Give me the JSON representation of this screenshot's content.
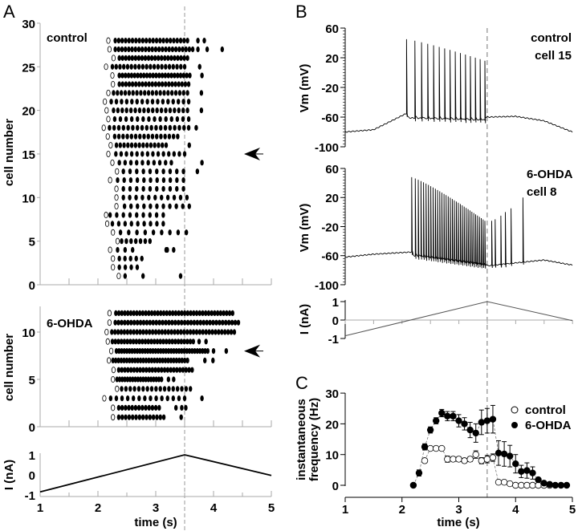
{
  "panels": {
    "a": "A",
    "b": "B",
    "c": "C"
  },
  "stimulus_peak_time": 3.5,
  "chart_data": [
    {
      "type": "scatter",
      "subtype": "raster",
      "panel": "A",
      "label": "control",
      "ylabel": "cell number",
      "xlim": [
        1,
        5
      ],
      "ylim": [
        0,
        30
      ],
      "yticks": [
        "0",
        "5",
        "10",
        "15",
        "20",
        "25",
        "30"
      ],
      "arrow_cell": 15,
      "cells_format": "[cell, first_spike_open, train_start, train_end, n_spikes, extra_spikes]",
      "cells": [
        [
          28,
          2.18,
          2.3,
          3.55,
          22,
          [
            3.73,
            3.84
          ]
        ],
        [
          27,
          2.2,
          2.3,
          3.64,
          24,
          [
            3.73,
            3.89,
            4.15
          ]
        ],
        [
          26,
          2.27,
          2.37,
          3.55,
          22,
          []
        ],
        [
          25,
          2.14,
          2.25,
          3.5,
          20,
          [
            3.76
          ]
        ],
        [
          24,
          2.25,
          2.37,
          3.59,
          24,
          [
            3.8
          ]
        ],
        [
          23,
          2.26,
          2.37,
          3.57,
          22,
          []
        ],
        [
          22,
          2.18,
          2.27,
          3.55,
          20,
          [
            3.79
          ]
        ],
        [
          21,
          2.12,
          2.23,
          3.57,
          16,
          []
        ],
        [
          20,
          2.15,
          2.27,
          3.55,
          18,
          [
            3.79
          ]
        ],
        [
          19,
          2.18,
          2.29,
          3.57,
          14,
          []
        ],
        [
          18,
          2.1,
          2.2,
          3.57,
          18,
          [
            3.7
          ]
        ],
        [
          17,
          2.17,
          2.29,
          3.38,
          16,
          []
        ],
        [
          16,
          2.22,
          2.32,
          3.18,
          14,
          [
            3.58
          ]
        ],
        [
          15,
          2.18,
          2.31,
          3.5,
          14,
          []
        ],
        [
          14,
          2.25,
          2.37,
          3.27,
          10,
          [
            3.8
          ]
        ],
        [
          13,
          2.33,
          2.44,
          3.48,
          10,
          [
            3.72
          ]
        ],
        [
          12,
          2.21,
          2.34,
          3.48,
          11,
          []
        ],
        [
          11,
          2.32,
          2.44,
          3.48,
          10,
          []
        ],
        [
          10,
          2.32,
          2.44,
          3.54,
          11,
          []
        ],
        [
          9,
          2.32,
          2.46,
          3.58,
          11,
          []
        ],
        [
          8,
          2.14,
          2.21,
          3.13,
          9,
          []
        ],
        [
          7,
          2.16,
          2.25,
          3.13,
          9,
          []
        ],
        [
          6,
          2.26,
          2.39,
          3.53,
          9,
          []
        ],
        [
          5,
          2.34,
          2.41,
          2.9,
          7,
          []
        ],
        [
          4,
          2.21,
          2.34,
          2.6,
          3,
          [
            3.18,
            3.2,
            3.31
          ]
        ],
        [
          3,
          2.26,
          2.37,
          2.76,
          5,
          []
        ],
        [
          2,
          2.26,
          2.37,
          2.68,
          4,
          []
        ],
        [
          1,
          2.36,
          2.47,
          2.47,
          1,
          [
            2.78,
            3.43
          ]
        ]
      ]
    },
    {
      "type": "scatter",
      "subtype": "raster",
      "panel": "A",
      "label": "6-OHDA",
      "ylabel": "cell number",
      "xlim": [
        1,
        5
      ],
      "ylim": [
        0,
        12.6
      ],
      "yticks": [
        "0",
        "5",
        "10"
      ],
      "arrow_cell": 8,
      "cells": [
        [
          12,
          2.2,
          2.31,
          4.33,
          40,
          []
        ],
        [
          11,
          2.2,
          2.3,
          4.43,
          40,
          []
        ],
        [
          10,
          2.15,
          2.24,
          4.36,
          40,
          []
        ],
        [
          9,
          2.17,
          2.25,
          3.65,
          28,
          [
            3.75,
            3.87
          ]
        ],
        [
          8,
          2.23,
          2.32,
          3.9,
          36,
          [
            4.0,
            4.22
          ]
        ],
        [
          7,
          2.19,
          2.26,
          3.55,
          28,
          [
            3.85,
            3.99
          ]
        ],
        [
          6,
          2.27,
          2.36,
          3.63,
          25,
          []
        ],
        [
          5,
          2.26,
          2.33,
          3.1,
          18,
          [
            3.22,
            3.31
          ]
        ],
        [
          4,
          2.33,
          2.41,
          3.6,
          17,
          []
        ],
        [
          3,
          2.11,
          2.22,
          3.5,
          14,
          [
            3.8
          ]
        ],
        [
          2,
          2.26,
          2.36,
          3.06,
          13,
          [
            3.35,
            3.45,
            3.52
          ]
        ],
        [
          1,
          2.26,
          2.36,
          3.14,
          14,
          [
            3.44
          ]
        ]
      ]
    },
    {
      "type": "line",
      "panel": "A",
      "ylabel": "I (nA)",
      "xlabel": "time (s)",
      "xticks": [
        "1",
        "2",
        "3",
        "4",
        "5"
      ],
      "yticks": [
        "-1",
        "0",
        "1"
      ],
      "x": [
        1,
        3.5,
        5
      ],
      "y": [
        -0.85,
        1,
        -0.03
      ]
    },
    {
      "type": "line",
      "panel": "B",
      "label": "control",
      "sublabel": "cell 15",
      "ylabel": "Vm (mV)",
      "yticks": [
        "60",
        "20",
        "-20",
        "-60",
        "-100"
      ],
      "ylim": [
        -100,
        60
      ],
      "baseline": {
        "x": [
          1,
          1.5,
          2.08,
          2.1,
          3.46,
          3.5,
          4,
          4.5,
          5
        ],
        "y": [
          -80,
          -77,
          -55,
          -61,
          -64,
          -60,
          -59,
          -65,
          -80
        ]
      },
      "spikes": {
        "first": 2.08,
        "last": 3.46,
        "count": 15,
        "peak_first": 45,
        "peak_last": 16
      }
    },
    {
      "type": "line",
      "panel": "B",
      "label": "6-OHDA",
      "sublabel": "cell 8",
      "ylabel": "Vm (mV)",
      "yticks": [
        "60",
        "20",
        "-20",
        "-60",
        "-100"
      ],
      "ylim": [
        -100,
        60
      ],
      "baseline": {
        "x": [
          1,
          1.5,
          2.17,
          2.2,
          3.5,
          4,
          4.5,
          5
        ],
        "y": [
          -62,
          -58,
          -55,
          -60,
          -74,
          -70,
          -66,
          -73
        ]
      },
      "spikes": {
        "first": 2.17,
        "last": 3.46,
        "count": 35,
        "peak_first": 48,
        "peak_last": -12
      },
      "late_spikes": {
        "t": [
          3.58,
          3.64,
          3.74,
          3.82,
          3.92,
          4.13
        ],
        "peak": [
          -12,
          -10,
          -5,
          0,
          5,
          20
        ]
      }
    },
    {
      "type": "line",
      "panel": "B",
      "ylabel": "I (nA)",
      "yticks": [
        "1",
        "0",
        "-1"
      ],
      "x": [
        1,
        3.5,
        5
      ],
      "y": [
        -0.85,
        1,
        -0.03
      ]
    },
    {
      "type": "scatter",
      "panel": "C",
      "ylabel": "instantaneous frequency (Hz)",
      "ylabel_lines": [
        "instantaneous",
        "frequency (Hz)"
      ],
      "xlabel": "time (s)",
      "xticks": [
        "1",
        "2",
        "3",
        "4",
        "5"
      ],
      "yticks": [
        "0",
        "10",
        "20",
        "30"
      ],
      "xlim": [
        1,
        5
      ],
      "ylim": [
        0,
        30
      ],
      "legend_position": "top-right",
      "series": [
        {
          "name": "control",
          "marker": "open",
          "x": [
            2.4,
            2.5,
            2.6,
            2.7,
            2.8,
            2.9,
            3.0,
            3.1,
            3.2,
            3.3,
            3.4,
            3.5,
            3.6,
            3.7,
            3.8,
            3.9,
            4.0,
            4.1,
            4.2,
            4.3,
            4.4,
            4.5,
            4.6
          ],
          "y": [
            8,
            12,
            12,
            12,
            8.5,
            8.5,
            8.5,
            8,
            8.5,
            10,
            8,
            8.5,
            9,
            1,
            1,
            0.5,
            0,
            0,
            0,
            0,
            0,
            0,
            0
          ],
          "err": [
            0.5,
            0.6,
            0.6,
            0.6,
            1,
            0.8,
            0.8,
            0.7,
            0.8,
            1.2,
            1,
            1.2,
            1.2,
            0.3,
            0.3,
            0.2,
            0,
            0,
            0,
            0,
            0,
            0,
            0
          ]
        },
        {
          "name": "6-OHDA",
          "marker": "filled",
          "x": [
            2.2,
            2.3,
            2.4,
            2.5,
            2.6,
            2.7,
            2.8,
            2.9,
            3.0,
            3.1,
            3.2,
            3.3,
            3.4,
            3.5,
            3.6,
            3.7,
            3.8,
            3.9,
            4.0,
            4.1,
            4.2,
            4.3,
            4.4,
            4.5,
            4.6,
            4.7,
            4.8,
            4.9
          ],
          "y": [
            0,
            4,
            12.5,
            18,
            21,
            23.5,
            22.5,
            22.5,
            21,
            20,
            18,
            17,
            20.5,
            21,
            21.5,
            10.5,
            10.2,
            9.5,
            7,
            4.5,
            4.8,
            4,
            1.8,
            0.7,
            0.3,
            0,
            0,
            0
          ],
          "err": [
            0,
            1,
            1,
            1,
            1,
            1.2,
            1.5,
            1.5,
            2,
            2,
            2.5,
            3,
            4,
            4,
            4.5,
            4,
            4,
            3.5,
            3,
            2,
            2.5,
            2,
            0.5,
            0.3,
            0,
            0,
            0,
            0
          ]
        }
      ]
    }
  ]
}
